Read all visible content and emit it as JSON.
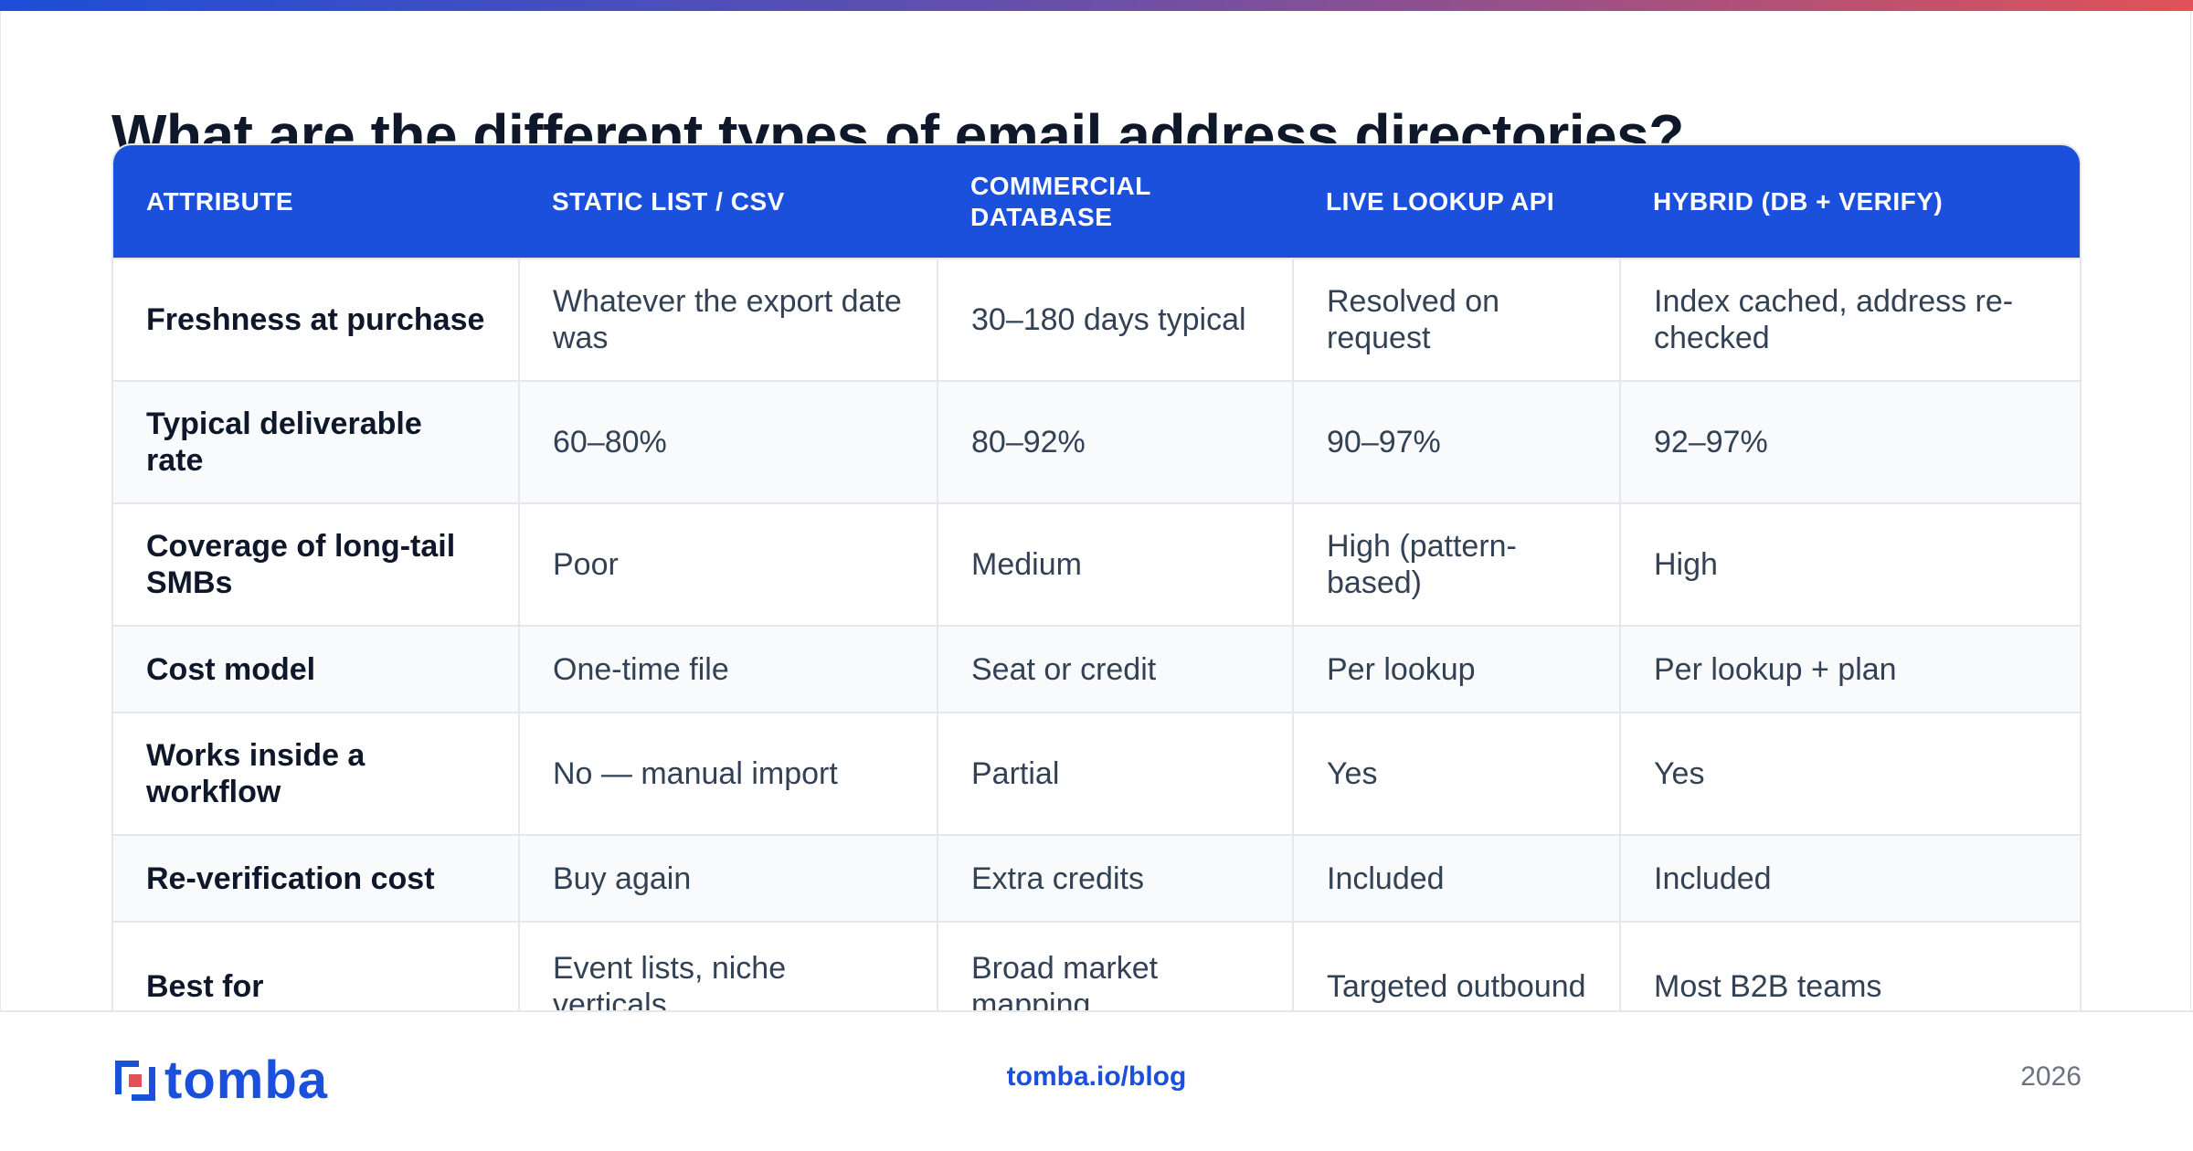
{
  "title": "What are the different types of email address directories?",
  "table": {
    "headers": [
      "ATTRIBUTE",
      "STATIC LIST / CSV",
      "COMMERCIAL DATABASE",
      "LIVE LOOKUP API",
      "HYBRID (DB + VERIFY)"
    ],
    "rows": [
      [
        "Freshness at purchase",
        "Whatever the export date was",
        "30–180 days typical",
        "Resolved on request",
        "Index cached, address re-checked"
      ],
      [
        "Typical deliverable rate",
        "60–80%",
        "80–92%",
        "90–97%",
        "92–97%"
      ],
      [
        "Coverage of long-tail SMBs",
        "Poor",
        "Medium",
        "High (pattern-based)",
        "High"
      ],
      [
        "Cost model",
        "One-time file",
        "Seat or credit",
        "Per lookup",
        "Per lookup + plan"
      ],
      [
        "Works inside a workflow",
        "No — manual import",
        "Partial",
        "Yes",
        "Yes"
      ],
      [
        "Re-verification cost",
        "Buy again",
        "Extra credits",
        "Included",
        "Included"
      ],
      [
        "Best for",
        "Event lists, niche verticals",
        "Broad market mapping",
        "Targeted outbound",
        "Most B2B teams"
      ]
    ]
  },
  "footer": {
    "logo_text": "tomba",
    "link": "tomba.io/blog",
    "year": "2026"
  },
  "colors": {
    "accent": "#1a50dc",
    "gradient_start": "#1d4ed8",
    "gradient_end": "#e05258"
  },
  "icons": {
    "logo": "tomba-logo-icon"
  }
}
